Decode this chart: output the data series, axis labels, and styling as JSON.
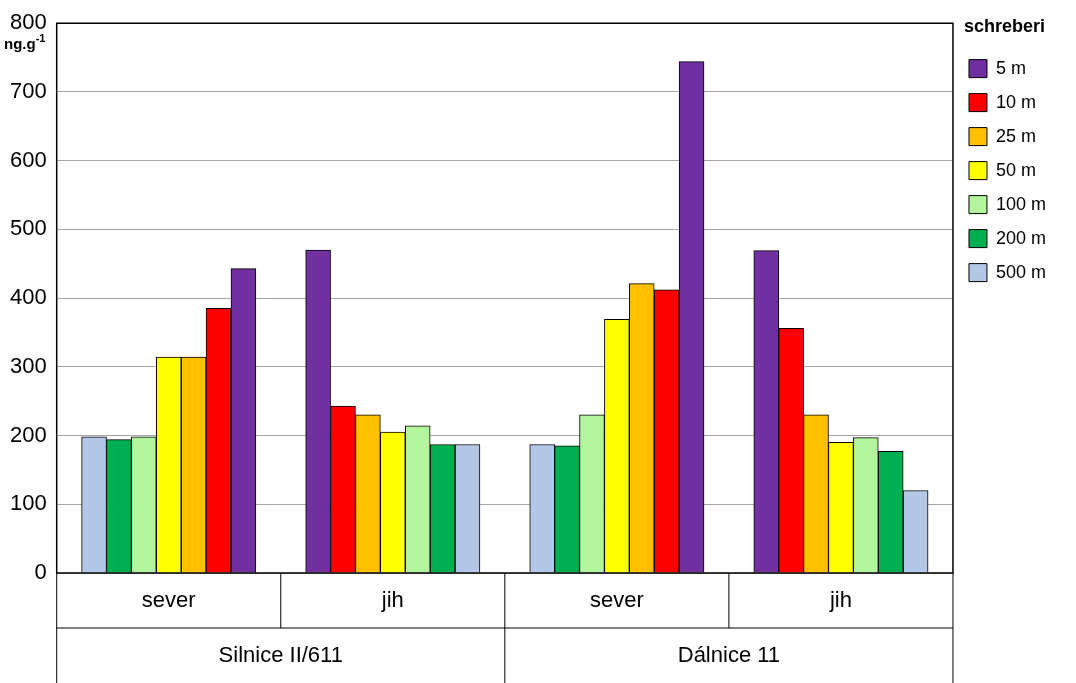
{
  "chart_data": {
    "type": "bar",
    "ylabel": "ng.g$^{-1}$",
    "legend_title": "schreberi",
    "categories": [
      "sever",
      "jih",
      "sever",
      "jih"
    ],
    "annotations": [
      "Silnice II/611",
      "Dálnice 11"
    ],
    "series": [
      {
        "name": "5 m",
        "color": "#7030a0",
        "values": [
          443,
          470,
          744,
          469
        ]
      },
      {
        "name": "10 m",
        "color": "#ff0000",
        "values": [
          385,
          243,
          412,
          356
        ]
      },
      {
        "name": "25 m",
        "color": "#ffc000",
        "values": [
          314,
          230,
          421,
          230
        ]
      },
      {
        "name": "50 m",
        "color": "#ffff00",
        "values": [
          314,
          205,
          369,
          190
        ]
      },
      {
        "name": "100 m",
        "color": "#b3f59d",
        "values": [
          198,
          214,
          230,
          197
        ]
      },
      {
        "name": "200 m",
        "color": "#00b050",
        "values": [
          194,
          187,
          185,
          177
        ]
      },
      {
        "name": "500 m",
        "color": "#b4c7e7",
        "values": [
          198,
          187,
          187,
          120
        ]
      }
    ],
    "ylim": [
      0,
      800
    ],
    "yticks": [
      0,
      100,
      200,
      300,
      400,
      500,
      600,
      700,
      800
    ],
    "grid": "y",
    "legend": "right"
  }
}
